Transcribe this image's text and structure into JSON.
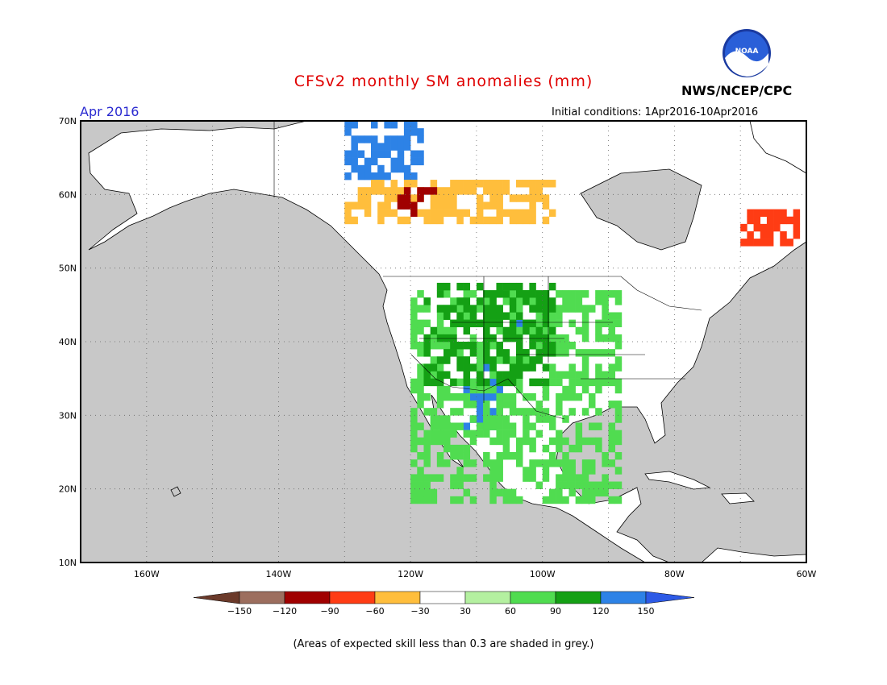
{
  "title": "CFSv2 monthly SM anomalies (mm)",
  "period": "Apr 2016",
  "agency": "NWS/NCEP/CPC",
  "logo_text": "NOAA",
  "initial_conditions": "Initial conditions: 1Apr2016-10Apr2016",
  "footnote": "(Areas of expected skill less than 0.3 are shaded in grey.)",
  "map": {
    "lon_range": [
      -170,
      -60
    ],
    "lat_range": [
      10,
      70
    ],
    "lat_labels": [
      "10N",
      "20N",
      "30N",
      "40N",
      "50N",
      "60N",
      "70N"
    ],
    "lon_labels": [
      "160W",
      "140W",
      "120W",
      "100W",
      "80W",
      "60W"
    ],
    "colors": {
      "ocean_grey": "#c8c8c8",
      "land_white": "#ffffff",
      "no_skill_grey": "#c8c8c8"
    }
  },
  "legend": {
    "labels": [
      "-150",
      "-120",
      "-90",
      "-60",
      "-30",
      "30",
      "60",
      "90",
      "120",
      "150"
    ],
    "colors": [
      "#6b3a2a",
      "#9c6e5e",
      "#a00000",
      "#ff3c14",
      "#ffbe3c",
      "#ffffff",
      "#b4f0a0",
      "#50dc50",
      "#14a014",
      "#2d82e6",
      "#2d5ae6"
    ]
  },
  "anomaly_regions": [
    {
      "category": "wet-150",
      "color": "#2d82e6",
      "lat": [
        62,
        70
      ],
      "lon": [
        -130,
        -118
      ]
    },
    {
      "category": "wet-150",
      "color": "#2d82e6",
      "lat": [
        28,
        37
      ],
      "lon": [
        -112,
        -106
      ]
    },
    {
      "category": "wet-150",
      "color": "#2d82e6",
      "lat": [
        41,
        46
      ],
      "lon": [
        -104,
        -98
      ]
    },
    {
      "category": "dry-60",
      "color": "#ffbe3c",
      "lat": [
        56,
        62
      ],
      "lon": [
        -130,
        -98
      ]
    },
    {
      "category": "dry-90",
      "color": "#ff3c14",
      "lat": [
        53,
        58
      ],
      "lon": [
        -70,
        -61
      ]
    },
    {
      "category": "dry-120",
      "color": "#a00000",
      "lat": [
        57,
        61
      ],
      "lon": [
        -122,
        -116
      ]
    },
    {
      "category": "wet-90",
      "color": "#50dc50",
      "lat": [
        18,
        47
      ],
      "lon": [
        -120,
        -88
      ]
    },
    {
      "category": "wet-120",
      "color": "#14a014",
      "lat": [
        34,
        48
      ],
      "lon": [
        -118,
        -98
      ]
    }
  ]
}
